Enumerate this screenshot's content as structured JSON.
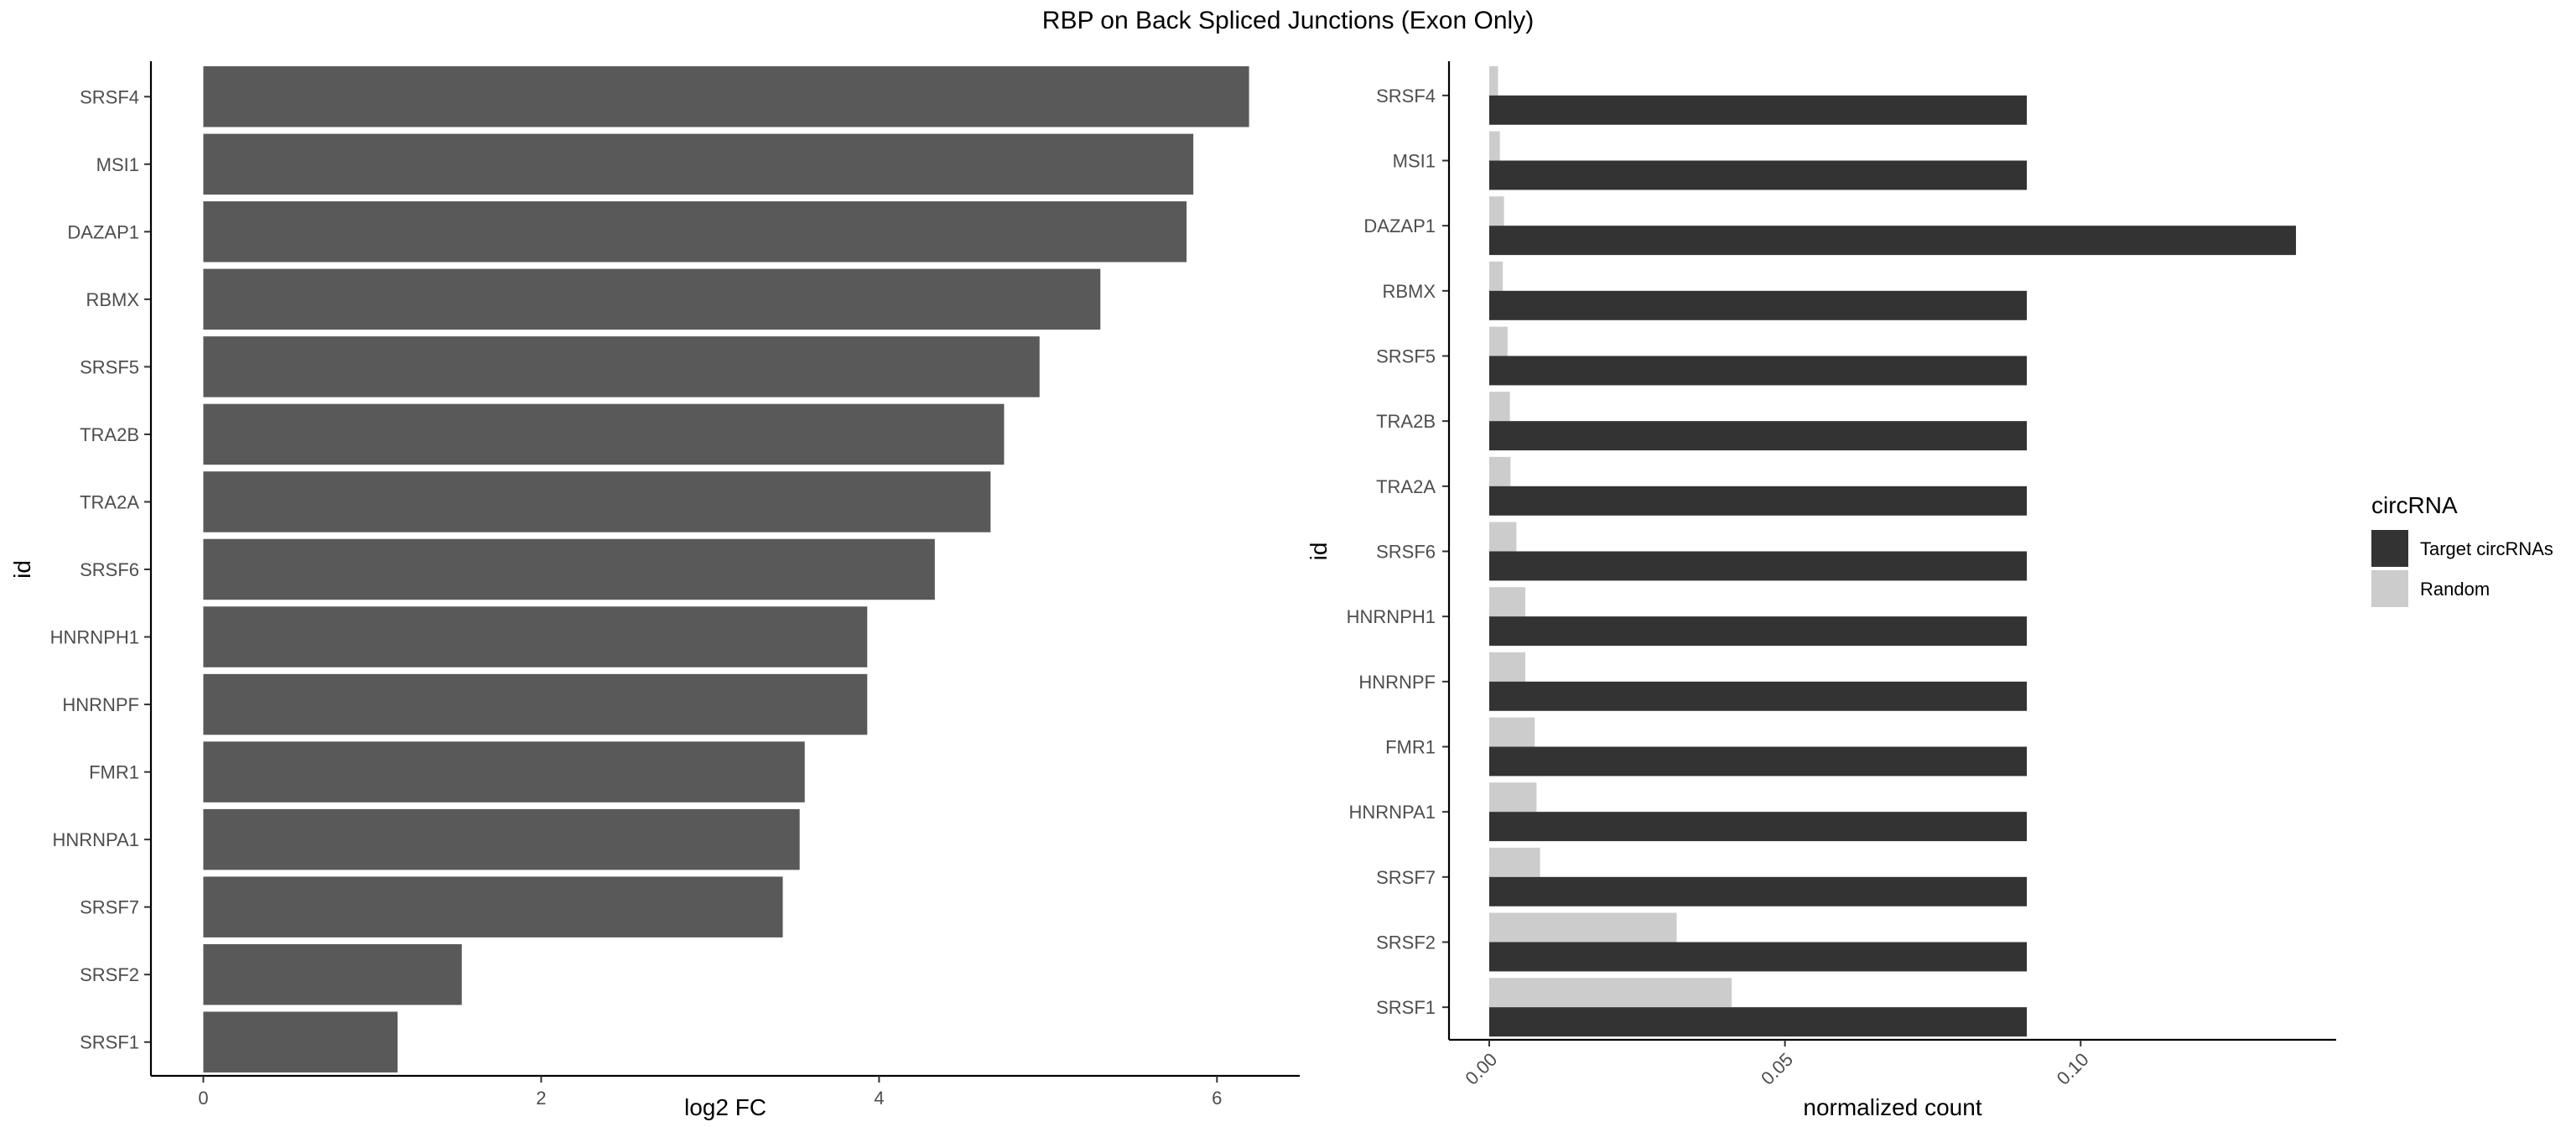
{
  "title": "RBP on Back Spliced Junctions (Exon Only)",
  "chart_data": [
    {
      "type": "bar",
      "orientation": "horizontal",
      "categories": [
        "SRSF4",
        "MSI1",
        "DAZAP1",
        "RBMX",
        "SRSF5",
        "TRA2B",
        "TRA2A",
        "SRSF6",
        "HNRNPH1",
        "HNRNPF",
        "FMR1",
        "HNRNPA1",
        "SRSF7",
        "SRSF2",
        "SRSF1"
      ],
      "values": [
        6.19,
        5.86,
        5.82,
        5.31,
        4.95,
        4.74,
        4.66,
        4.33,
        3.93,
        3.93,
        3.56,
        3.53,
        3.43,
        1.53,
        1.15
      ],
      "xlabel": "log2 FC",
      "ylabel": "id",
      "xlim": [
        -0.31,
        6.49
      ],
      "xticks": [
        "0",
        "2",
        "4",
        "6"
      ],
      "xtick_values": [
        0,
        2,
        4,
        6
      ],
      "bar_color": "#595959",
      "grid": false
    },
    {
      "type": "bar",
      "orientation": "horizontal",
      "categories": [
        "SRSF4",
        "MSI1",
        "DAZAP1",
        "RBMX",
        "SRSF5",
        "TRA2B",
        "TRA2A",
        "SRSF6",
        "HNRNPH1",
        "HNRNPF",
        "FMR1",
        "HNRNPA1",
        "SRSF7",
        "SRSF2",
        "SRSF1"
      ],
      "series": [
        {
          "name": "Target circRNAs",
          "color": "#333333",
          "values": [
            0.0909,
            0.0909,
            0.1364,
            0.0909,
            0.0909,
            0.0909,
            0.0909,
            0.0909,
            0.0909,
            0.0909,
            0.0909,
            0.0909,
            0.0909,
            0.0909,
            0.0909
          ]
        },
        {
          "name": "Random",
          "color": "#cccccc",
          "values": [
            0.0015,
            0.0018,
            0.0025,
            0.0023,
            0.0031,
            0.0035,
            0.0036,
            0.0046,
            0.0061,
            0.0061,
            0.0077,
            0.008,
            0.0086,
            0.0317,
            0.041
          ]
        }
      ],
      "xlabel": "normalized count",
      "ylabel": "id",
      "xlim": [
        -0.0068,
        0.1432
      ],
      "xticks": [
        "0.00",
        "0.05",
        "0.10"
      ],
      "xtick_values": [
        0.0,
        0.05,
        0.1
      ],
      "xtick_rotation": -45,
      "legend": {
        "title": "circRNA",
        "position": "right"
      },
      "grid": false
    }
  ]
}
